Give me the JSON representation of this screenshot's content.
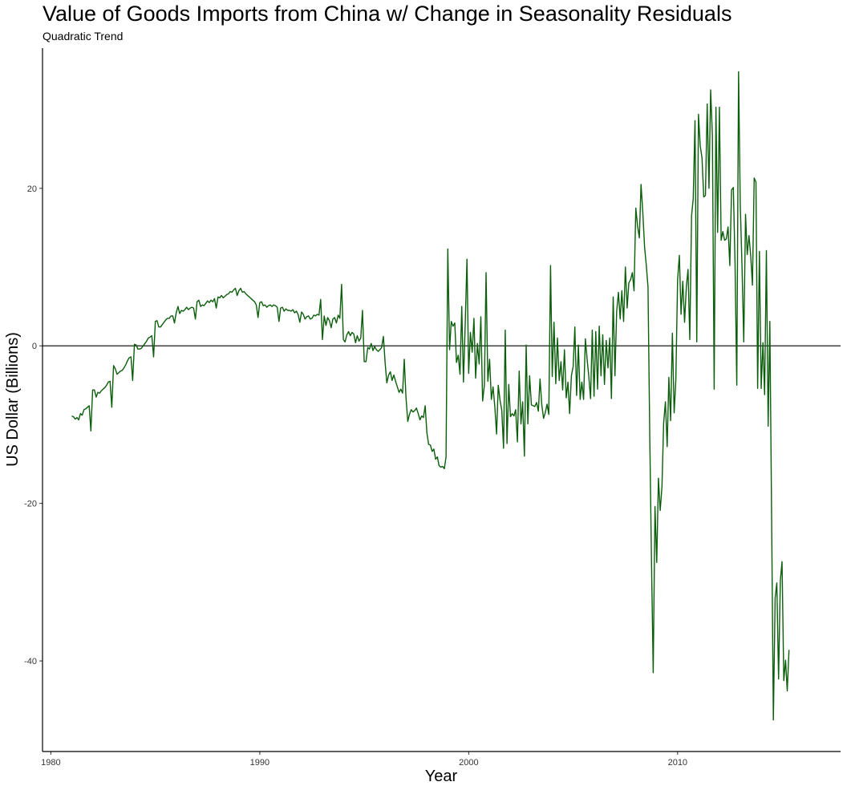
{
  "chart_data": {
    "type": "line",
    "title": "Value of Goods Imports from China w/ Change in Seasonality Residuals",
    "subtitle": "Quadratic Trend",
    "xlabel": "Year",
    "ylabel": "US Dollar (Billions)",
    "xlim": [
      1979.6,
      2017.8
    ],
    "ylim": [
      -51.5,
      37.8
    ],
    "x_ticks": [
      1980,
      1990,
      2000,
      2010
    ],
    "y_ticks": [
      -40,
      -20,
      0,
      20
    ],
    "reference_line": 0,
    "grid": false,
    "line_color": "#0b5e0b",
    "series": [
      {
        "x_start": 1981.0,
        "x_step": 0.08333,
        "values": [
          -8.9,
          -9.0,
          -9.3,
          -9.1,
          -9.4,
          -8.6,
          -8.8,
          -8.1,
          -8.0,
          -7.8,
          -7.6,
          -10.8,
          -5.6,
          -5.6,
          -6.5,
          -5.9,
          -6.0,
          -5.7,
          -5.5,
          -5.3,
          -5.0,
          -4.6,
          -4.5,
          -7.8,
          -2.5,
          -2.9,
          -3.6,
          -3.4,
          -3.2,
          -3.1,
          -2.8,
          -2.4,
          -1.9,
          -1.5,
          -1.4,
          -4.4,
          0.2,
          0.1,
          -0.4,
          -0.4,
          -0.3,
          0.0,
          0.3,
          0.6,
          1.0,
          1.1,
          1.3,
          -1.4,
          3.1,
          3.2,
          2.4,
          2.4,
          2.7,
          3.0,
          3.3,
          3.5,
          3.5,
          3.8,
          3.8,
          2.9,
          4.2,
          5.0,
          4.1,
          4.5,
          4.4,
          4.6,
          4.9,
          4.6,
          4.8,
          4.9,
          4.8,
          3.4,
          5.6,
          5.8,
          5.0,
          5.2,
          5.1,
          5.4,
          5.7,
          5.5,
          5.8,
          5.6,
          6.0,
          4.8,
          6.2,
          6.1,
          6.4,
          6.1,
          6.3,
          6.5,
          6.6,
          6.9,
          6.8,
          7.1,
          7.3,
          6.4,
          7.0,
          7.3,
          6.8,
          6.9,
          6.6,
          6.4,
          6.2,
          6.0,
          5.8,
          5.6,
          5.2,
          3.6,
          5.5,
          5.6,
          5.1,
          5.2,
          4.9,
          5.1,
          5.2,
          5.0,
          5.2,
          5.1,
          4.9,
          3.1,
          4.8,
          4.9,
          4.4,
          4.7,
          4.5,
          4.5,
          4.4,
          4.6,
          4.2,
          4.4,
          4.0,
          3.0,
          4.3,
          4.0,
          3.4,
          3.7,
          3.8,
          3.4,
          3.5,
          3.9,
          3.8,
          4.0,
          3.9,
          5.9,
          0.8,
          3.8,
          2.6,
          3.6,
          3.2,
          2.3,
          3.4,
          3.6,
          2.9,
          3.9,
          3.5,
          7.8,
          0.8,
          0.5,
          1.4,
          1.8,
          1.3,
          1.7,
          1.5,
          0.4,
          1.3,
          0.6,
          1.0,
          4.5,
          -2.0,
          -2.0,
          -0.2,
          -0.4,
          0.3,
          -0.6,
          -0.1,
          -0.5,
          -0.7,
          -0.5,
          -0.2,
          1.2,
          -2.2,
          -4.7,
          -3.7,
          -3.3,
          -4.4,
          -3.7,
          -4.5,
          -5.2,
          -5.9,
          -5.5,
          -6.0,
          -1.7,
          -6.6,
          -9.6,
          -8.7,
          -8.1,
          -8.4,
          -8.2,
          -7.9,
          -8.6,
          -9.4,
          -8.9,
          -9.1,
          -7.6,
          -11.0,
          -12.5,
          -12.6,
          -13.4,
          -13.1,
          -14.4,
          -14.1,
          -15.2,
          -15.4,
          -15.3,
          -15.6,
          -14.1,
          12.3,
          -0.5,
          3.1,
          2.5,
          2.9,
          -2.1,
          -1.2,
          -3.6,
          5.0,
          -4.6,
          2.7,
          11.0,
          -3.5,
          1.7,
          -0.8,
          3.5,
          -4.1,
          0.3,
          -2.3,
          3.7,
          -7.0,
          -5.0,
          9.3,
          -4.5,
          -1.7,
          -6.8,
          -5.2,
          -7.7,
          -11.2,
          -5.0,
          -6.9,
          -8.2,
          -13.0,
          2.0,
          -12.4,
          -4.9,
          -9.0,
          -8.6,
          -8.9,
          -8.1,
          -12.2,
          -3.2,
          -9.9,
          -7.1,
          -14.0,
          0.1,
          -9.9,
          -3.8,
          -7.5,
          -7.6,
          -7.7,
          -7.2,
          -8.3,
          -4.2,
          -7.5,
          -9.2,
          -8.5,
          -7.4,
          -8.7,
          10.2,
          -3.9,
          3.0,
          -4.8,
          1.0,
          -4.4,
          -2.0,
          -5.6,
          -0.5,
          -6.6,
          -4.6,
          -8.6,
          -3.8,
          -2.6,
          2.4,
          -6.3,
          0.1,
          -6.8,
          -4.6,
          -6.8,
          0.9,
          -1.6,
          -3.9,
          -6.7,
          2.0,
          -6.4,
          1.8,
          -5.5,
          2.5,
          -3.8,
          1.4,
          -4.9,
          0.7,
          -2.8,
          1.0,
          -6.7,
          6.2,
          -3.8,
          4.3,
          6.8,
          3.4,
          7.0,
          3.1,
          10.0,
          4.8,
          8.0,
          8.4,
          9.3,
          7.0,
          17.5,
          15.2,
          13.7,
          20.5,
          17.0,
          12.6,
          10.3,
          7.5,
          -11.5,
          -27.0,
          -41.5,
          -20.4,
          -27.5,
          -16.8,
          -20.9,
          -17.9,
          -9.8,
          -7.1,
          -12.8,
          -4.0,
          -9.5,
          1.6,
          -8.5,
          -4.4,
          8.4,
          11.5,
          4.0,
          8.2,
          3.0,
          7.5,
          9.7,
          0.8,
          16.5,
          18.7,
          28.6,
          0.5,
          29.4,
          25.4,
          23.9,
          18.9,
          19.1,
          30.7,
          20.0,
          32.5,
          26.6,
          -5.5,
          30.3,
          14.4,
          30.3,
          13.4,
          14.5,
          13.4,
          13.6,
          15.1,
          10.2,
          19.8,
          20.1,
          10.5,
          -5.0,
          34.8,
          18.1,
          10.1,
          0.5,
          16.7,
          11.6,
          14.0,
          11.4,
          7.7,
          21.3,
          20.8,
          -5.4,
          12.0,
          -5.4,
          0.4,
          -6.2,
          12.1,
          -10.2,
          3.1,
          -21.5,
          -47.5,
          -32.0,
          -30.1,
          -42.3,
          -29.8,
          -27.4,
          -42.5,
          -39.9,
          -43.8,
          -38.6
        ]
      }
    ]
  }
}
